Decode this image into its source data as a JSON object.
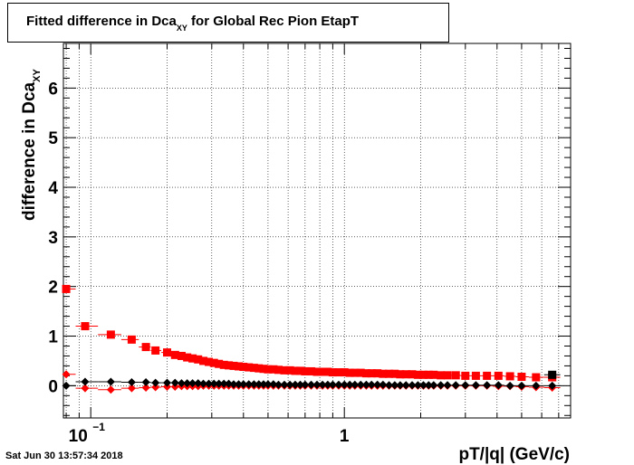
{
  "title": {
    "prefix": "Fitted difference in Dca",
    "sub": "XY",
    "suffix": " for Global Rec Pion EtapT"
  },
  "ylabel": {
    "prefix": "difference in Dca",
    "sub": "XY"
  },
  "xlabel": "pT/|q| (GeV/c)",
  "timestamp": "Sat Jun 30 13:57:34 2018",
  "chart_data": {
    "type": "scatter",
    "x_scale": "log",
    "xlim": [
      0.078,
      7.8
    ],
    "ylim": [
      -0.65,
      6.9
    ],
    "grid": true,
    "x_tick_labels": [
      {
        "value": 0.1,
        "base": "10",
        "exp": "−1"
      },
      {
        "value": 1,
        "base": "1",
        "exp": ""
      }
    ],
    "y_ticks": [
      0,
      1,
      2,
      3,
      4,
      5,
      6
    ],
    "series": [
      {
        "color": "#ff0000",
        "marker": "square",
        "x": [
          0.08,
          0.095,
          0.12,
          0.145,
          0.165,
          0.18,
          0.2,
          0.215,
          0.228,
          0.24,
          0.252,
          0.265,
          0.278,
          0.292,
          0.306,
          0.32,
          0.335,
          0.35,
          0.366,
          0.383,
          0.4,
          0.42,
          0.44,
          0.46,
          0.48,
          0.5,
          0.525,
          0.55,
          0.58,
          0.61,
          0.64,
          0.67,
          0.7,
          0.74,
          0.78,
          0.82,
          0.86,
          0.9,
          0.95,
          1.0,
          1.05,
          1.1,
          1.16,
          1.22,
          1.28,
          1.35,
          1.42,
          1.5,
          1.58,
          1.66,
          1.75,
          1.85,
          1.95,
          2.05,
          2.15,
          2.25,
          2.4,
          2.55,
          2.75,
          3.0,
          3.3,
          3.65,
          4.05,
          4.5,
          5.0,
          5.7,
          6.6
        ],
        "y": [
          1.95,
          1.2,
          1.03,
          0.93,
          0.78,
          0.71,
          0.67,
          0.62,
          0.6,
          0.57,
          0.55,
          0.53,
          0.5,
          0.48,
          0.46,
          0.44,
          0.42,
          0.41,
          0.4,
          0.39,
          0.38,
          0.37,
          0.36,
          0.35,
          0.34,
          0.33,
          0.33,
          0.32,
          0.31,
          0.31,
          0.3,
          0.3,
          0.29,
          0.29,
          0.28,
          0.28,
          0.28,
          0.27,
          0.27,
          0.27,
          0.26,
          0.26,
          0.26,
          0.25,
          0.25,
          0.25,
          0.24,
          0.24,
          0.24,
          0.23,
          0.23,
          0.23,
          0.22,
          0.22,
          0.22,
          0.22,
          0.21,
          0.21,
          0.21,
          0.2,
          0.2,
          0.2,
          0.2,
          0.19,
          0.18,
          0.17,
          0.17
        ],
        "err_y": [
          0.05,
          0.04,
          0.03,
          0.02,
          0.02,
          0.02,
          0.02,
          0.02,
          0.02,
          0.01,
          0.01,
          0.01,
          0.01,
          0.01,
          0.01,
          0.01,
          0.01,
          0.01,
          0.01,
          0.01,
          0.01,
          0.01,
          0.01,
          0.01,
          0.01,
          0.01,
          0.01,
          0.01,
          0.01,
          0.01,
          0.01,
          0.01,
          0.01,
          0.01,
          0.01,
          0.01,
          0.01,
          0.01,
          0.01,
          0.01,
          0.01,
          0.01,
          0.01,
          0.01,
          0.01,
          0.01,
          0.01,
          0.01,
          0.01,
          0.01,
          0.01,
          0.01,
          0.01,
          0.01,
          0.01,
          0.01,
          0.01,
          0.01,
          0.01,
          0.01,
          0.02,
          0.02,
          0.03,
          0.03,
          0.04,
          0.05,
          0.06
        ]
      },
      {
        "color": "#ff0000",
        "marker": "diamond",
        "x": [
          0.08,
          0.095,
          0.12,
          0.145,
          0.165,
          0.18,
          0.2,
          0.215,
          0.228,
          0.24,
          0.252,
          0.265,
          0.278,
          0.292,
          0.306,
          0.32,
          0.335,
          0.35,
          0.366,
          0.383,
          0.4,
          0.42,
          0.44,
          0.46,
          0.48,
          0.5,
          0.525,
          0.55,
          0.58,
          0.61,
          0.64,
          0.67,
          0.7,
          0.74,
          0.78,
          0.82,
          0.86,
          0.9,
          0.95,
          1.0,
          1.05,
          1.1,
          1.16,
          1.22,
          1.28,
          1.35,
          1.42,
          1.5,
          1.58,
          1.66,
          1.75,
          1.85,
          1.95,
          2.05,
          2.15,
          2.25,
          2.4,
          2.55,
          2.75,
          3.0,
          3.3,
          3.65,
          4.05,
          4.5,
          5.0,
          5.7,
          6.6
        ],
        "y": [
          0.23,
          -0.05,
          -0.08,
          -0.05,
          -0.04,
          -0.03,
          -0.02,
          -0.02,
          -0.01,
          -0.01,
          -0.01,
          -0.01,
          0.0,
          0.0,
          0.0,
          0.0,
          0.0,
          0.0,
          0.0,
          0.0,
          0.0,
          0.0,
          0.0,
          0.0,
          0.0,
          0.0,
          0.0,
          0.0,
          0.0,
          0.0,
          0.0,
          0.0,
          0.0,
          0.0,
          0.0,
          0.0,
          0.0,
          0.0,
          0.0,
          0.0,
          0.0,
          0.0,
          0.0,
          0.0,
          0.0,
          0.0,
          0.0,
          0.0,
          0.0,
          0.0,
          0.0,
          0.0,
          0.0,
          0.0,
          0.0,
          0.0,
          0.0,
          0.0,
          0.0,
          0.0,
          0.0,
          0.0,
          -0.01,
          -0.01,
          -0.02,
          -0.03,
          -0.04
        ]
      },
      {
        "color": "#000000",
        "marker": "square",
        "x": [
          6.6
        ],
        "y": [
          0.22
        ],
        "err_y": [
          0.04
        ]
      },
      {
        "color": "#000000",
        "marker": "diamond",
        "x": [
          0.08,
          0.095,
          0.12,
          0.145,
          0.165,
          0.18,
          0.2,
          0.215,
          0.228,
          0.24,
          0.252,
          0.265,
          0.278,
          0.292,
          0.306,
          0.32,
          0.335,
          0.35,
          0.366,
          0.383,
          0.4,
          0.42,
          0.44,
          0.46,
          0.48,
          0.5,
          0.525,
          0.55,
          0.58,
          0.61,
          0.64,
          0.67,
          0.7,
          0.74,
          0.78,
          0.82,
          0.86,
          0.9,
          0.95,
          1.0,
          1.05,
          1.1,
          1.16,
          1.22,
          1.28,
          1.35,
          1.42,
          1.5,
          1.58,
          1.66,
          1.75,
          1.85,
          1.95,
          2.05,
          2.15,
          2.25,
          2.4,
          2.55,
          2.75,
          3.0,
          3.3,
          3.65,
          4.05,
          4.5,
          5.0,
          5.7,
          6.6
        ],
        "y": [
          0.0,
          0.08,
          0.08,
          0.07,
          0.07,
          0.06,
          0.06,
          0.06,
          0.05,
          0.05,
          0.05,
          0.05,
          0.04,
          0.04,
          0.04,
          0.04,
          0.04,
          0.04,
          0.03,
          0.03,
          0.03,
          0.03,
          0.03,
          0.03,
          0.03,
          0.03,
          0.03,
          0.02,
          0.02,
          0.02,
          0.02,
          0.02,
          0.02,
          0.02,
          0.02,
          0.02,
          0.02,
          0.02,
          0.02,
          0.02,
          0.02,
          0.02,
          0.02,
          0.02,
          0.02,
          0.02,
          0.02,
          0.01,
          0.01,
          0.01,
          0.01,
          0.01,
          0.01,
          0.01,
          0.01,
          0.01,
          0.01,
          0.01,
          0.01,
          0.01,
          0.01,
          0.01,
          0.01,
          0.0,
          0.0,
          0.0,
          0.0
        ]
      }
    ]
  }
}
